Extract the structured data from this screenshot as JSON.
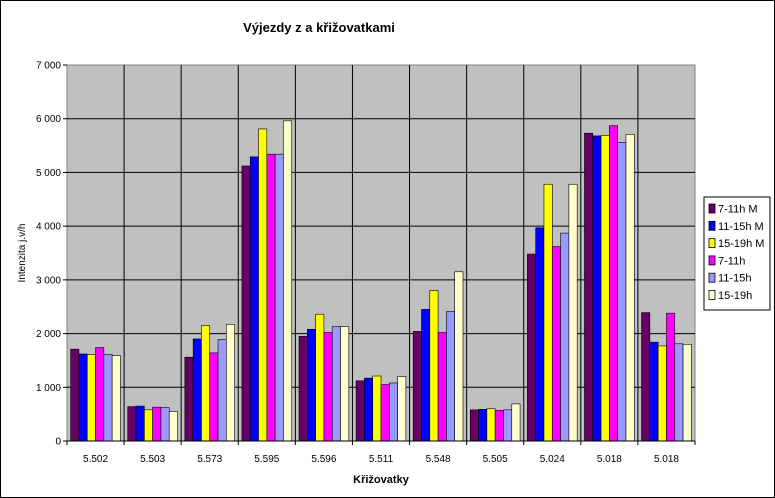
{
  "chart_data": {
    "type": "bar",
    "title": "Výjezdy z a křižovatkami",
    "xlabel": "Křižovatky",
    "ylabel": "Intenzita j.v/h",
    "ylim": [
      0,
      7000
    ],
    "ytick_labels": [
      "0",
      "1 000",
      "2 000",
      "3 000",
      "4 000",
      "5 000",
      "6 000",
      "7 000"
    ],
    "grid": true,
    "legend_position": "right",
    "categories": [
      "5.502",
      "5.503",
      "5.573",
      "5.595",
      "5.596",
      "5.511",
      "5.548",
      "5.505",
      "5.024",
      "5.018",
      "5.018"
    ],
    "series": [
      {
        "name": "7-11h M",
        "color": "#660066",
        "values": [
          1710,
          640,
          1560,
          5120,
          1950,
          1120,
          2040,
          580,
          3480,
          5730,
          2390
        ]
      },
      {
        "name": "11-15h M",
        "color": "#0000ff",
        "values": [
          1620,
          650,
          1900,
          5290,
          2080,
          1170,
          2450,
          590,
          3970,
          5680,
          1840
        ]
      },
      {
        "name": "15-19h M",
        "color": "#ffff00",
        "values": [
          1610,
          580,
          2150,
          5810,
          2360,
          1210,
          2800,
          600,
          4780,
          5690,
          1770
        ]
      },
      {
        "name": "7-11h",
        "color": "#ff00ff",
        "values": [
          1740,
          630,
          1640,
          5340,
          2020,
          1050,
          2020,
          570,
          3620,
          5870,
          2380
        ]
      },
      {
        "name": "11-15h",
        "color": "#9999ff",
        "values": [
          1610,
          620,
          1890,
          5340,
          2130,
          1080,
          2410,
          580,
          3870,
          5560,
          1810
        ]
      },
      {
        "name": "15-19h",
        "color": "#ffffcc",
        "values": [
          1590,
          550,
          2170,
          5960,
          2130,
          1200,
          3150,
          690,
          4780,
          5710,
          1800
        ]
      }
    ]
  }
}
